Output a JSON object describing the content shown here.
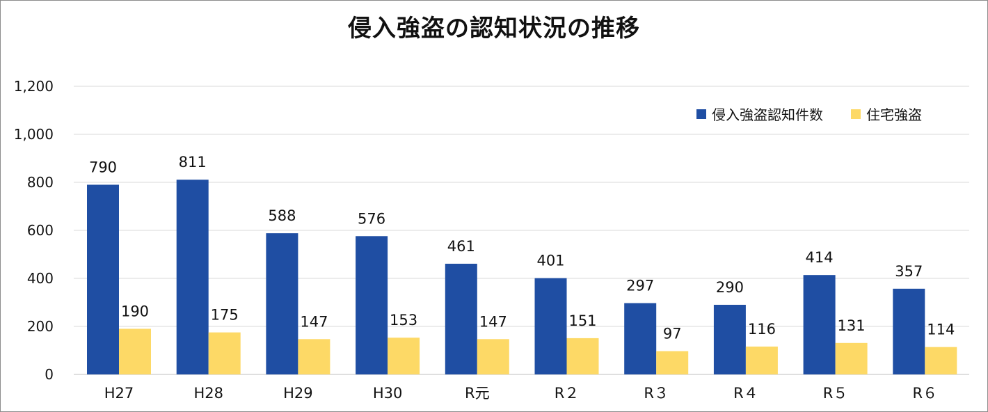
{
  "chart_data": {
    "type": "bar",
    "title": "侵入強盗の認知状況の推移",
    "categories": [
      "H27",
      "H28",
      "H29",
      "H30",
      "R元",
      "R2",
      "R3",
      "R4",
      "R5",
      "R6"
    ],
    "category_labels": [
      "H27",
      "H28",
      "H29",
      "H30",
      "R元",
      "R２",
      "R３",
      "R４",
      "R５",
      "R６"
    ],
    "series": [
      {
        "name": "侵入強盗認知件数",
        "values": [
          790,
          811,
          588,
          576,
          461,
          401,
          297,
          290,
          414,
          357
        ],
        "color": "#1f4ea3"
      },
      {
        "name": "住宅強盗",
        "values": [
          190,
          175,
          147,
          153,
          147,
          151,
          97,
          116,
          131,
          114
        ],
        "color": "#fdd966"
      }
    ],
    "y_ticks": [
      "0",
      "200",
      "400",
      "600",
      "800",
      "1,000",
      "1,200"
    ],
    "ylim": [
      0,
      1200
    ],
    "grid": true,
    "legend_position": "top-right",
    "xlabel": "",
    "ylabel": ""
  }
}
